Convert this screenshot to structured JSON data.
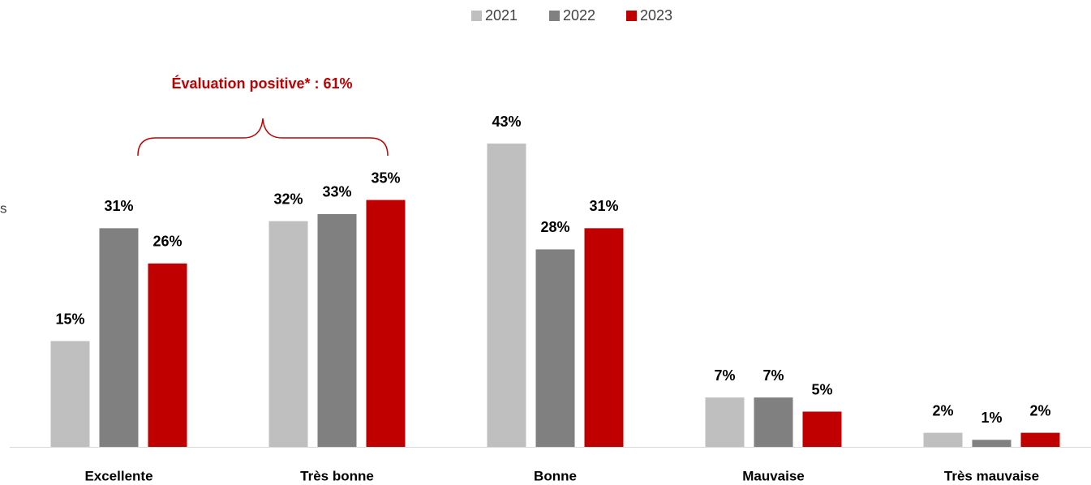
{
  "chart_data": {
    "type": "bar",
    "annotation": "Évaluation positive* : 61%",
    "edge_text": "s",
    "categories": [
      "Excellente",
      "Très bonne",
      "Bonne",
      "Mauvaise",
      "Très mauvaise"
    ],
    "series": [
      {
        "name": "2021",
        "color": "#bfbfbf",
        "values": [
          15,
          32,
          43,
          7,
          2
        ],
        "value_labels": [
          "15%",
          "32%",
          "43%",
          "7%",
          "2%"
        ]
      },
      {
        "name": "2022",
        "color": "#808080",
        "values": [
          31,
          33,
          28,
          7,
          1
        ],
        "value_labels": [
          "31%",
          "33%",
          "28%",
          "7%",
          "1%"
        ]
      },
      {
        "name": "2023",
        "color": "#c00000",
        "values": [
          26,
          35,
          31,
          5,
          2
        ],
        "value_labels": [
          "26%",
          "35%",
          "31%",
          "5%",
          "2%"
        ]
      }
    ],
    "legend": "top"
  }
}
